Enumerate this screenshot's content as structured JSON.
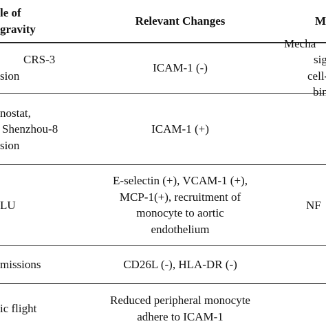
{
  "table": {
    "header": [
      [
        "le of",
        "gravity"
      ],
      [
        "Relevant Changes"
      ],
      [
        "M"
      ]
    ],
    "rows": [
      [
        [
          "CRS-3",
          "sion"
        ],
        [
          "ICAM-1 (-)"
        ],
        [
          "Mecha",
          "sig",
          "cell-",
          "bin"
        ]
      ],
      [
        [
          "nostat,",
          "Shenzhou-8",
          "sion"
        ],
        [
          "ICAM-1 (+)"
        ]
      ],
      [
        [
          "LU"
        ],
        [
          "E-selectin (+), VCAM-1 (+),",
          "MCP-1(+), recruitment of",
          "monocyte to aortic",
          "endothelium"
        ],
        [
          "NF"
        ]
      ],
      [
        [
          "missions"
        ],
        [
          "CD26L (-), HLA-DR (-)"
        ]
      ],
      [
        [
          "ic flight"
        ],
        [
          "Reduced peripheral monocyte",
          "adhere to ICAM-1"
        ]
      ]
    ]
  }
}
